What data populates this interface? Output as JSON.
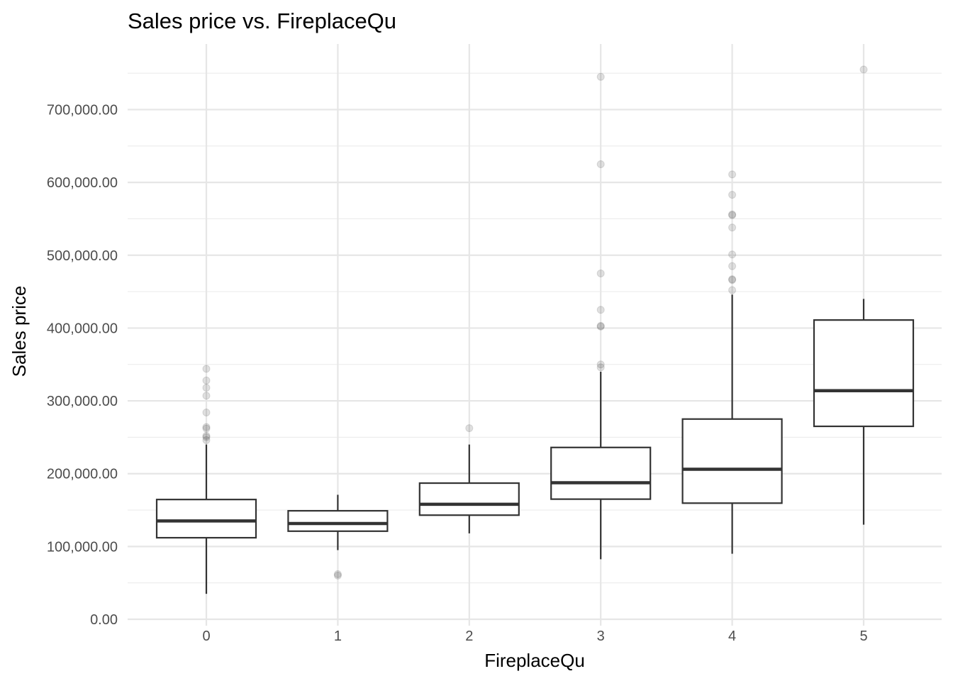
{
  "chart_data": {
    "type": "boxplot",
    "title": "Sales price vs. FireplaceQu",
    "xlabel": "FireplaceQu",
    "ylabel": "Sales price",
    "categories": [
      "0",
      "1",
      "2",
      "3",
      "4",
      "5"
    ],
    "ylim": [
      0,
      790000
    ],
    "yticks": [
      0,
      100000,
      200000,
      300000,
      400000,
      500000,
      600000,
      700000
    ],
    "ytick_labels": [
      "0.00",
      "100,000.00",
      "200,000.00",
      "300,000.00",
      "400,000.00",
      "500,000.00",
      "600,000.00",
      "700,000.00"
    ],
    "grid": true,
    "boxes": [
      {
        "category": "0",
        "whisker_low": 34900,
        "q1": 112000,
        "median": 135000,
        "q3": 164500,
        "whisker_high": 240000,
        "outliers": [
          246000,
          250000,
          252000,
          262000,
          264000,
          284000,
          307000,
          318000,
          328000,
          344000
        ]
      },
      {
        "category": "1",
        "whisker_low": 95000,
        "q1": 121000,
        "median": 131500,
        "q3": 149000,
        "whisker_high": 171000,
        "outliers": [
          60000,
          62000
        ]
      },
      {
        "category": "2",
        "whisker_low": 118000,
        "q1": 143000,
        "median": 158000,
        "q3": 187000,
        "whisker_high": 240000,
        "outliers": [
          262500
        ]
      },
      {
        "category": "3",
        "whisker_low": 82500,
        "q1": 165000,
        "median": 187500,
        "q3": 236000,
        "whisker_high": 340000,
        "outliers": [
          346000,
          350000,
          402000,
          403000,
          425000,
          475000,
          625000,
          745000
        ]
      },
      {
        "category": "4",
        "whisker_low": 90000,
        "q1": 159500,
        "median": 206000,
        "q3": 275000,
        "whisker_high": 446000,
        "outliers": [
          452000,
          466000,
          467000,
          485000,
          501000,
          538000,
          555000,
          556000,
          583000,
          611000
        ]
      },
      {
        "category": "5",
        "whisker_low": 130000,
        "q1": 265000,
        "median": 314000,
        "q3": 411000,
        "whisker_high": 440000,
        "outliers": [
          755000
        ]
      }
    ]
  }
}
